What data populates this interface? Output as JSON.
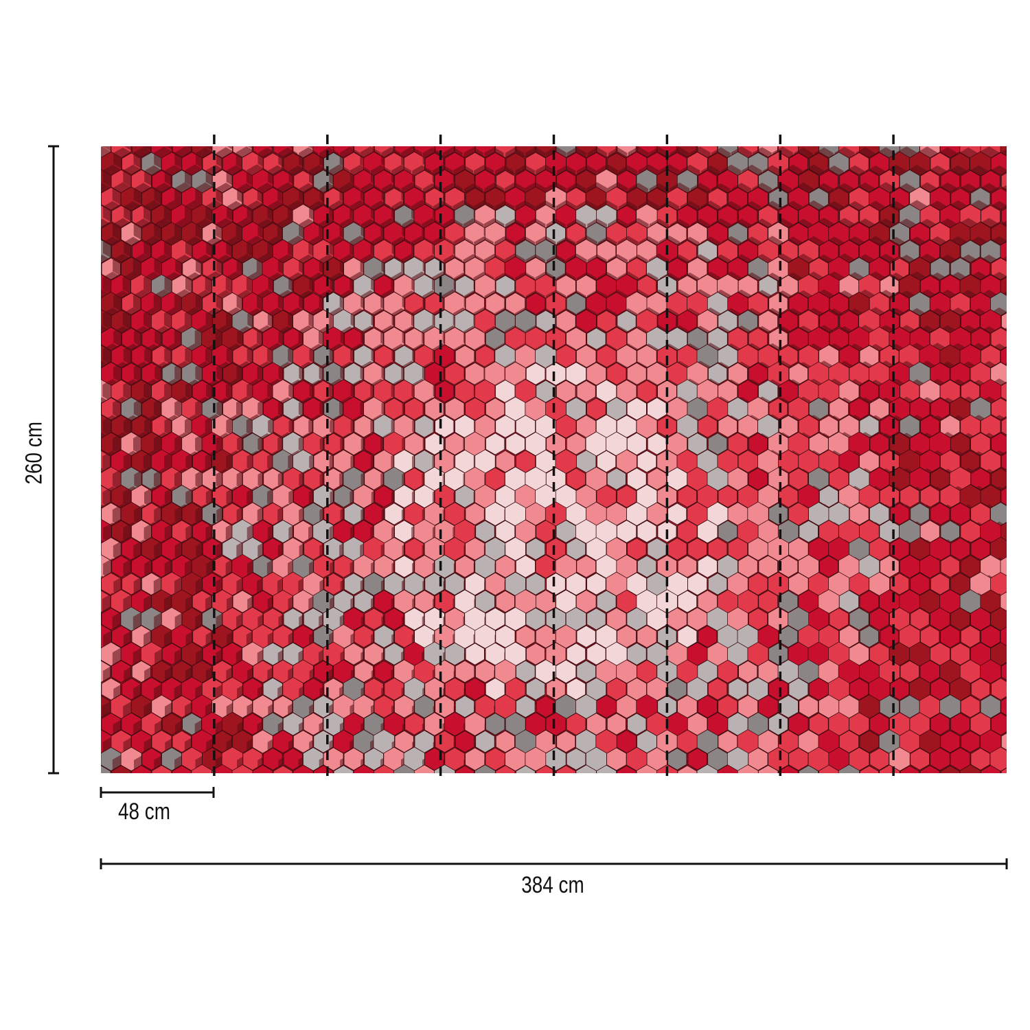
{
  "dimensions": {
    "height_label": "260 cm",
    "panel_width_label": "48 cm",
    "total_width_label": "384 cm"
  },
  "mural": {
    "panel_count": 8,
    "palette": [
      "#c8102e",
      "#e23a4a",
      "#9e1520",
      "#f08a90",
      "#b9b1b2",
      "#8c8586",
      "#f3d6d8"
    ]
  },
  "colors": {
    "line": "#111111",
    "background": "#ffffff"
  }
}
